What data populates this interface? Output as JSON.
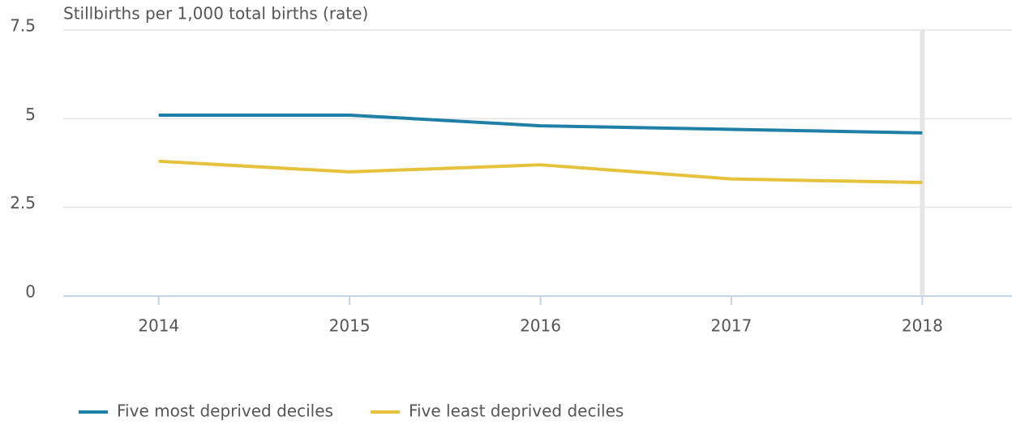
{
  "chart_data": {
    "type": "line",
    "y_label": "Stillbirths per 1,000 total births (rate)",
    "x": [
      2014,
      2015,
      2016,
      2017,
      2018
    ],
    "xlim": [
      2013.5,
      2018.47
    ],
    "xticks": [
      2014,
      2015,
      2016,
      2017,
      2018
    ],
    "ylim": [
      0,
      7.5
    ],
    "yticks": [
      0,
      2.5,
      5,
      7.5
    ],
    "grid": true,
    "legend": "bottom-left",
    "series": [
      {
        "name": "Five most deprived deciles",
        "color": "#1f7fa6",
        "values": [
          5.1,
          5.1,
          4.8,
          4.7,
          4.6
        ]
      },
      {
        "name": "Five least deprived deciles",
        "color": "#e6c13b",
        "values": [
          3.8,
          3.5,
          3.7,
          3.3,
          3.2
        ]
      }
    ]
  }
}
